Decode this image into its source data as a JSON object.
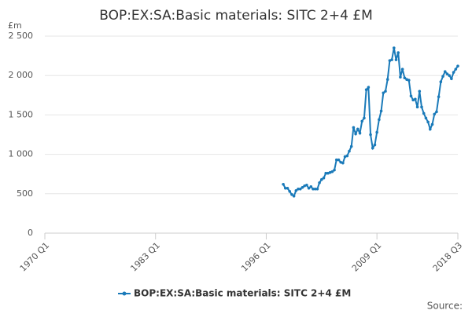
{
  "chart_data": {
    "type": "line",
    "title": "BOP:EX:SA:Basic materials: SITC 2+4 £M",
    "y_unit_label": "£m",
    "source": "Source:",
    "xlim": [
      1970,
      2018.5
    ],
    "xticks": [
      {
        "value": 1970,
        "label": "1970 Q1"
      },
      {
        "value": 1983,
        "label": "1983 Q1"
      },
      {
        "value": 1996,
        "label": "1996 Q1"
      },
      {
        "value": 2009,
        "label": "2009 Q1"
      },
      {
        "value": 2018.5,
        "label": "2018 Q3"
      }
    ],
    "ylim": [
      0,
      2500
    ],
    "yticks": [
      0,
      500,
      {
        "value": 1000,
        "label": "1 000"
      },
      {
        "value": 1500,
        "label": "1 500"
      },
      {
        "value": 2000,
        "label": "2 000"
      },
      {
        "value": 2500,
        "label": "2 500"
      }
    ],
    "grid": true,
    "legend": "bottom",
    "x": [
      1998,
      1998.25,
      1998.5,
      1998.75,
      1999,
      1999.25,
      1999.5,
      1999.75,
      2000,
      2000.25,
      2000.5,
      2000.75,
      2001,
      2001.25,
      2001.5,
      2001.75,
      2002,
      2002.25,
      2002.5,
      2002.75,
      2003,
      2003.25,
      2003.5,
      2003.75,
      2004,
      2004.25,
      2004.5,
      2004.75,
      2005,
      2005.25,
      2005.5,
      2005.75,
      2006,
      2006.25,
      2006.5,
      2006.75,
      2007,
      2007.25,
      2007.5,
      2007.75,
      2008,
      2008.25,
      2008.5,
      2008.75,
      2009,
      2009.25,
      2009.5,
      2009.75,
      2010,
      2010.25,
      2010.5,
      2010.75,
      2011,
      2011.25,
      2011.5,
      2011.75,
      2012,
      2012.25,
      2012.5,
      2012.75,
      2013,
      2013.25,
      2013.5,
      2013.75,
      2014,
      2014.25,
      2014.5,
      2014.75,
      2015,
      2015.25,
      2015.5,
      2015.75,
      2016,
      2016.25,
      2016.5,
      2016.75,
      2017,
      2017.25,
      2017.5,
      2017.75,
      2018,
      2018.25,
      2018.5
    ],
    "series": [
      {
        "name": "BOP:EX:SA:Basic materials: SITC 2+4 £M",
        "color": "#1a7ab9",
        "values": [
          620,
          570,
          570,
          530,
          490,
          470,
          540,
          560,
          560,
          580,
          600,
          610,
          570,
          590,
          560,
          560,
          560,
          640,
          680,
          700,
          760,
          760,
          770,
          780,
          800,
          930,
          930,
          900,
          890,
          970,
          980,
          1040,
          1100,
          1340,
          1260,
          1320,
          1270,
          1420,
          1460,
          1820,
          1850,
          1250,
          1080,
          1120,
          1280,
          1440,
          1550,
          1780,
          1800,
          1950,
          2190,
          2200,
          2350,
          2200,
          2290,
          1980,
          2080,
          1970,
          1950,
          1940,
          1740,
          1690,
          1700,
          1600,
          1800,
          1600,
          1520,
          1460,
          1410,
          1320,
          1380,
          1510,
          1540,
          1730,
          1920,
          1990,
          2050,
          2020,
          2000,
          1960,
          2040,
          2080,
          2120
        ]
      }
    ]
  }
}
